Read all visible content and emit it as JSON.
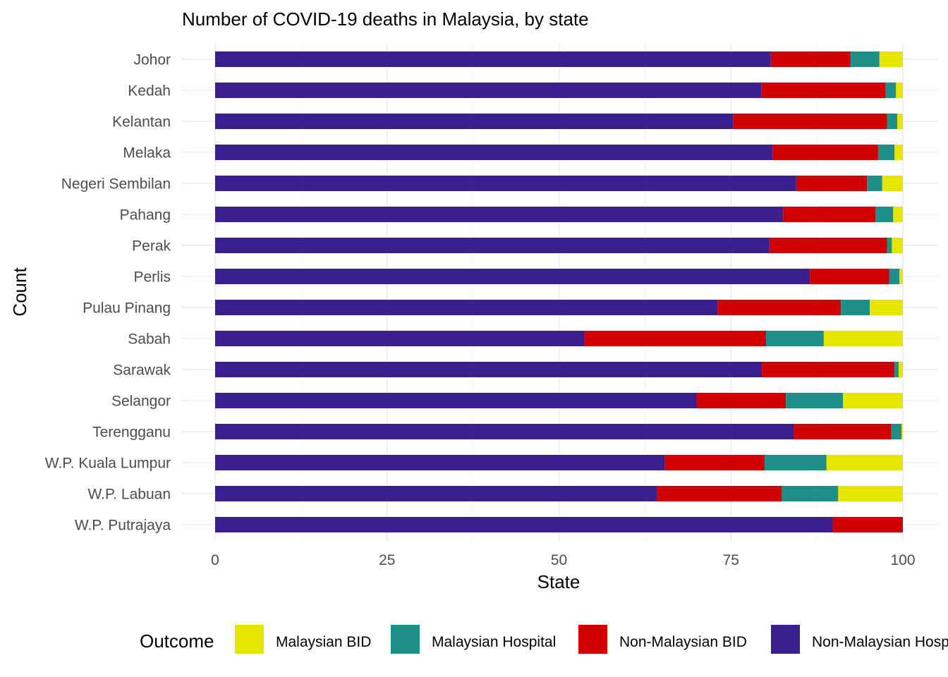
{
  "chart_data": {
    "type": "bar",
    "orientation": "horizontal",
    "stacked": true,
    "title": "Number of COVID-19 deaths in Malaysia, by state",
    "xlabel": "State",
    "ylabel": "Count",
    "xlim": [
      0,
      100
    ],
    "x_ticks": [
      "0",
      "25",
      "50",
      "75",
      "100"
    ],
    "grid": true,
    "legend_position": "bottom",
    "legend_title": "Outcome",
    "categories": [
      "Johor",
      "Kedah",
      "Kelantan",
      "Melaka",
      "Negeri Sembilan",
      "Pahang",
      "Perak",
      "Perlis",
      "Pulau Pinang",
      "Sabah",
      "Sarawak",
      "Selangor",
      "Terengganu",
      "W.P. Kuala Lumpur",
      "W.P. Labuan",
      "W.P. Putrajaya"
    ],
    "series": [
      {
        "name": "Non-Malaysian Hospital",
        "color": "#3b1f8e",
        "values": [
          80.8,
          79.4,
          75.3,
          81.1,
          84.5,
          82.6,
          80.6,
          86.5,
          73.1,
          53.7,
          79.5,
          70.0,
          84.1,
          65.4,
          64.2,
          89.8
        ]
      },
      {
        "name": "Non-Malaysian BID",
        "color": "#d10000",
        "values": [
          11.6,
          18.1,
          22.4,
          15.3,
          10.3,
          13.4,
          17.1,
          11.5,
          17.9,
          26.4,
          19.3,
          13.0,
          14.2,
          14.5,
          18.2,
          10.2
        ]
      },
      {
        "name": "Malaysian Hospital",
        "color": "#1f8f8a",
        "values": [
          4.2,
          1.5,
          1.5,
          2.4,
          2.2,
          2.6,
          0.7,
          1.5,
          4.2,
          8.4,
          0.6,
          8.3,
          1.5,
          9.0,
          8.2,
          0.0
        ]
      },
      {
        "name": "Malaysian BID",
        "color": "#e5e500",
        "values": [
          3.4,
          1.0,
          0.8,
          1.2,
          3.0,
          1.4,
          1.6,
          0.5,
          4.8,
          11.5,
          0.6,
          8.7,
          0.2,
          11.1,
          9.4,
          0.0
        ]
      }
    ],
    "legend_order": [
      "Malaysian BID",
      "Malaysian Hospital",
      "Non-Malaysian BID",
      "Non-Malaysian Hospital"
    ]
  }
}
